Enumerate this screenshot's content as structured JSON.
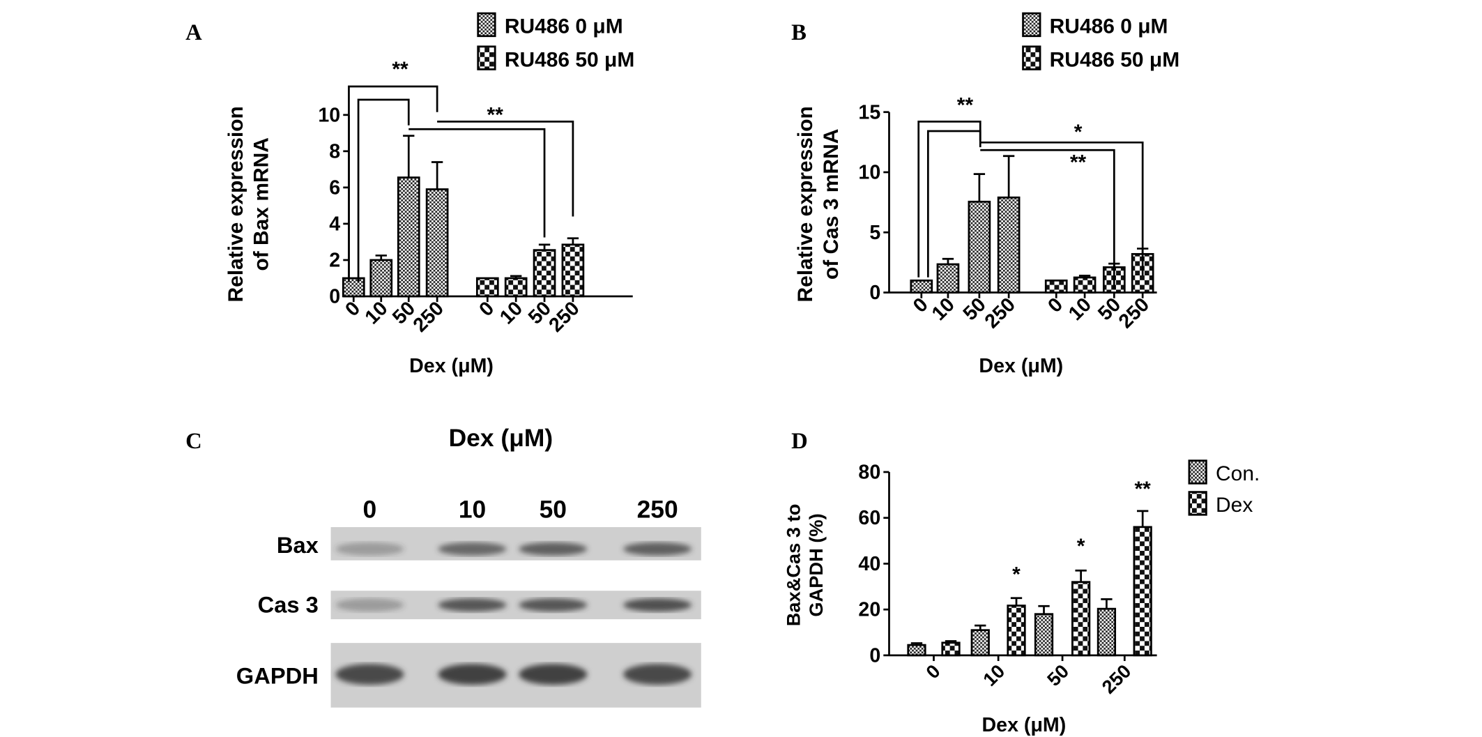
{
  "panels": {
    "A": "A",
    "B": "B",
    "C": "C",
    "D": "D"
  },
  "chart_data": [
    {
      "id": "A",
      "type": "bar",
      "ylabel": [
        "Relative expression",
        "of Bax mRNA"
      ],
      "xlabel": "Dex (μM)",
      "ylim": [
        0,
        10
      ],
      "yticks": [
        0,
        2,
        4,
        6,
        8,
        10
      ],
      "categories": [
        "0",
        "10",
        "50",
        "250"
      ],
      "legend": {
        "placement": "top-right"
      },
      "series": [
        {
          "name": "RU486 0 μM",
          "pattern": "fine-checker",
          "values": [
            1.0,
            2.0,
            6.55,
            5.9
          ],
          "error_upper": [
            1.0,
            2.25,
            8.85,
            7.4
          ]
        },
        {
          "name": "RU486 50 μM",
          "pattern": "coarse-checker",
          "values": [
            1.0,
            1.0,
            2.55,
            2.85
          ],
          "error_upper": [
            1.0,
            1.12,
            2.85,
            3.2
          ]
        }
      ],
      "annotations": [
        "**",
        "**"
      ]
    },
    {
      "id": "B",
      "type": "bar",
      "ylabel": [
        "Relative expression",
        "of Cas 3 mRNA"
      ],
      "xlabel": "Dex (μM)",
      "ylim": [
        0,
        15
      ],
      "yticks": [
        0,
        5,
        10,
        15
      ],
      "categories": [
        "0",
        "10",
        "50",
        "250"
      ],
      "legend": {
        "placement": "top-right"
      },
      "series": [
        {
          "name": "RU486 0 μM",
          "pattern": "fine-checker",
          "values": [
            1.0,
            2.35,
            7.55,
            7.9
          ],
          "error_upper": [
            1.0,
            2.8,
            9.85,
            11.35
          ]
        },
        {
          "name": "RU486 50 μM",
          "pattern": "coarse-checker",
          "values": [
            1.0,
            1.25,
            2.1,
            3.2
          ],
          "error_upper": [
            1.0,
            1.4,
            2.4,
            3.65
          ]
        }
      ],
      "annotations": [
        "**",
        "*",
        "**"
      ]
    },
    {
      "id": "D",
      "type": "bar",
      "ylabel": [
        "Bax&Cas 3 to",
        "GAPDH (%)"
      ],
      "xlabel": "Dex (μM)",
      "ylim": [
        0,
        80
      ],
      "yticks": [
        0,
        20,
        40,
        60,
        80
      ],
      "categories": [
        "0",
        "10",
        "50",
        "250"
      ],
      "legend": {
        "placement": "right"
      },
      "series": [
        {
          "name": "Con.",
          "pattern": "fine-checker",
          "values": [
            4.5,
            11,
            18,
            20.3
          ],
          "error_upper": [
            5.3,
            13,
            21.5,
            24.5
          ]
        },
        {
          "name": "Dex",
          "pattern": "coarse-checker",
          "values": [
            5.5,
            21.7,
            32,
            56
          ],
          "error_upper": [
            6.2,
            25,
            37,
            63
          ]
        }
      ],
      "annotations": [
        "*",
        "*",
        "**"
      ]
    }
  ],
  "blot": {
    "title": "Dex (μM)",
    "lanes": [
      "0",
      "10",
      "50",
      "250"
    ],
    "rows": [
      "Bax",
      "Cas 3",
      "GAPDH"
    ]
  }
}
